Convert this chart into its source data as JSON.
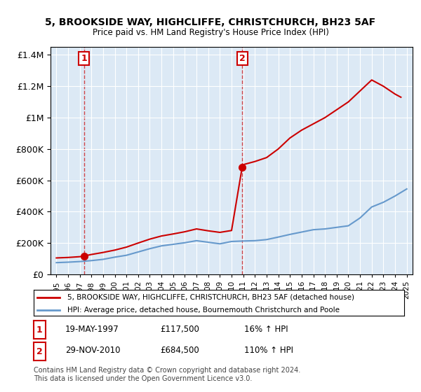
{
  "title1": "5, BROOKSIDE WAY, HIGHCLIFFE, CHRISTCHURCH, BH23 5AF",
  "title2": "Price paid vs. HM Land Registry's House Price Index (HPI)",
  "legend_label1": "5, BROOKSIDE WAY, HIGHCLIFFE, CHRISTCHURCH, BH23 5AF (detached house)",
  "legend_label2": "HPI: Average price, detached house, Bournemouth Christchurch and Poole",
  "footer1": "Contains HM Land Registry data © Crown copyright and database right 2024.",
  "footer2": "This data is licensed under the Open Government Licence v3.0.",
  "table_rows": [
    {
      "num": "1",
      "date": "19-MAY-1997",
      "price": "£117,500",
      "hpi": "16% ↑ HPI"
    },
    {
      "num": "2",
      "date": "29-NOV-2010",
      "price": "£684,500",
      "hpi": "110% ↑ HPI"
    }
  ],
  "sale1_year": 1997.38,
  "sale1_price": 117500,
  "sale2_year": 2010.91,
  "sale2_price": 684500,
  "red_line_color": "#cc0000",
  "blue_line_color": "#6699cc",
  "bg_color": "#dce9f5",
  "plot_bg": "#dce9f5",
  "grid_color": "#ffffff",
  "ylim": [
    0,
    1450000
  ],
  "xlim": [
    1994.5,
    2025.5
  ],
  "hpi_years": [
    1995,
    1996,
    1997,
    1998,
    1999,
    2000,
    2001,
    2002,
    2003,
    2004,
    2005,
    2006,
    2007,
    2008,
    2009,
    2010,
    2011,
    2012,
    2013,
    2014,
    2015,
    2016,
    2017,
    2018,
    2019,
    2020,
    2021,
    2022,
    2023,
    2024,
    2025
  ],
  "hpi_values": [
    75000,
    78000,
    82000,
    88000,
    96000,
    110000,
    122000,
    143000,
    164000,
    182000,
    192000,
    202000,
    215000,
    205000,
    195000,
    210000,
    213000,
    215000,
    222000,
    238000,
    255000,
    270000,
    285000,
    290000,
    300000,
    310000,
    360000,
    430000,
    460000,
    500000,
    545000
  ],
  "red_years": [
    1995,
    1996,
    1997,
    1997.38,
    1998,
    1999,
    2000,
    2001,
    2002,
    2003,
    2004,
    2005,
    2006,
    2007,
    2008,
    2009,
    2010,
    2010.91,
    2011,
    2012,
    2013,
    2014,
    2015,
    2016,
    2017,
    2018,
    2019,
    2020,
    2021,
    2022,
    2023,
    2024,
    2024.5
  ],
  "red_values": [
    105000,
    108000,
    113000,
    117500,
    127000,
    140000,
    155000,
    174000,
    200000,
    225000,
    245000,
    258000,
    272000,
    290000,
    278000,
    268000,
    280000,
    684500,
    700000,
    720000,
    745000,
    800000,
    870000,
    920000,
    960000,
    1000000,
    1050000,
    1100000,
    1170000,
    1240000,
    1200000,
    1150000,
    1130000
  ]
}
